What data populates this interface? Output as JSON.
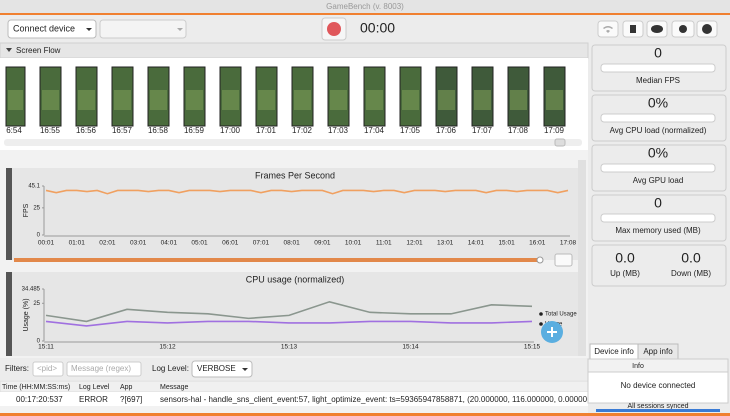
{
  "window_title": "GameBench (v. 8003)",
  "toolbar": {
    "device_select": "Connect device",
    "timer": "00:00"
  },
  "screen_flow": {
    "title": "Screen Flow",
    "thumbnails": [
      "6:54",
      "16:55",
      "16:56",
      "16:57",
      "16:58",
      "16:59",
      "17:00",
      "17:01",
      "17:02",
      "17:03",
      "17:04",
      "17:05",
      "17:06",
      "17:07",
      "17:08",
      "17:09"
    ]
  },
  "chart_data": [
    {
      "type": "line",
      "title": "Frames Per Second",
      "y_label": "FPS",
      "categories": [
        "00:01",
        null,
        null,
        "01:01",
        null,
        null,
        "02:01",
        null,
        null,
        "03:01",
        null,
        null,
        "04:01",
        null,
        null,
        "05:01",
        null,
        null,
        "06:01",
        null,
        null,
        "07:01",
        null,
        null,
        "08:01",
        null,
        null,
        "09:01",
        null,
        null,
        "10:01",
        null,
        null,
        "11:01",
        null,
        null,
        "12:01",
        null,
        null,
        "13:01",
        null,
        null,
        "14:01",
        null,
        null,
        "15:01",
        null,
        null,
        "16:01",
        null,
        null,
        "17:08"
      ],
      "series": [
        {
          "color": "#f0a060",
          "values": [
            41,
            39,
            41,
            41,
            40,
            41,
            38,
            41,
            41,
            41,
            40,
            41,
            41,
            39,
            41,
            41,
            41,
            40,
            41,
            41,
            41,
            39,
            41,
            41,
            40,
            41,
            41,
            41,
            38,
            41,
            41,
            41,
            40,
            41,
            41,
            39,
            41,
            41,
            41,
            40,
            41,
            41,
            41,
            39,
            41,
            41,
            40,
            41,
            41,
            41,
            39,
            41
          ]
        }
      ],
      "ylim": [
        0,
        45.1
      ],
      "yticks": [
        0,
        25,
        45.1
      ]
    },
    {
      "type": "line",
      "title": "CPU usage (normalized)",
      "y_label": "Usage (%)",
      "categories": [
        "15:11",
        null,
        null,
        "15:12",
        null,
        null,
        "15:13",
        null,
        null,
        "15:14",
        null,
        null,
        "15:15"
      ],
      "series": [
        {
          "name": "Total Usage",
          "color": "#8a968e",
          "values": [
            17,
            13,
            21,
            19,
            18,
            15,
            17,
            26,
            19,
            18,
            18,
            24,
            23
          ]
        },
        {
          "name": "Usage",
          "color": "#a070e0",
          "values": [
            13,
            10,
            13,
            12,
            13,
            13,
            12,
            12,
            13,
            13,
            12,
            12,
            13
          ]
        }
      ],
      "ylim": [
        0,
        34.485
      ],
      "yticks": [
        0,
        25,
        34.485
      ]
    }
  ],
  "stats": [
    {
      "value": "0",
      "label": "Median FPS"
    },
    {
      "value": "0%",
      "label": "Avg CPU load (normalized)"
    },
    {
      "value": "0%",
      "label": "Avg GPU load"
    },
    {
      "value": "0",
      "label": "Max memory used (MB)"
    }
  ],
  "transfer": [
    {
      "value": "0.0",
      "label": "Up (MB)"
    },
    {
      "value": "0.0",
      "label": "Down (MB)"
    }
  ],
  "device_panel": {
    "tabs": [
      "Device info",
      "App info"
    ],
    "header": "Info",
    "message": "No device connected",
    "status": "All sessions synced"
  },
  "log": {
    "filters_label": "Filters:",
    "pid_placeholder": "<pid>",
    "message_placeholder": "Message (regex)",
    "level_label": "Log Level:",
    "level": "VERBOSE",
    "columns": [
      "Time (HH:MM:SS:ms)",
      "Log Level",
      "App",
      "Message"
    ],
    "rows": [
      [
        "00:17:20:537",
        "ERROR",
        "?[697]",
        "sensors-hal - handle_sns_client_event:57, light_optimize_event: ts=59365947858871, (20.000000, 116.000000, 0.000000)"
      ]
    ]
  }
}
